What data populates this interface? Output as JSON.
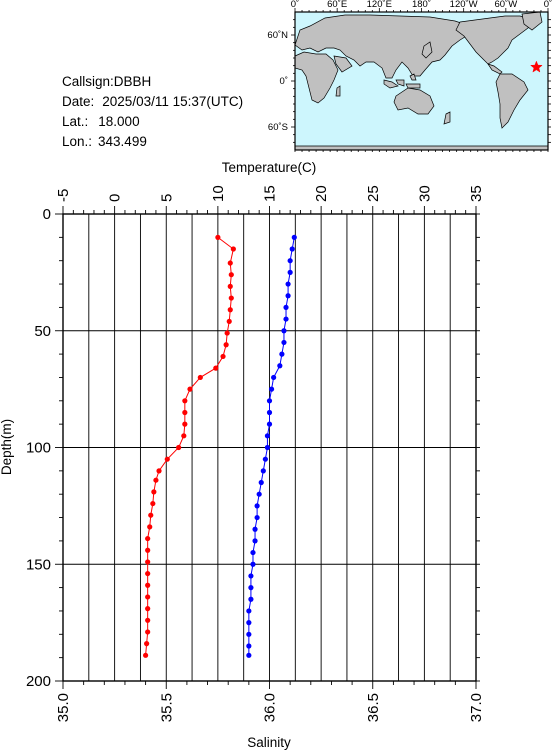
{
  "station": {
    "callsign_label": "Callsign:",
    "callsign": "DBBH",
    "date_label": "Date:",
    "date": "2025/03/11 15:37(UTC)",
    "lat_label": "Lat.:",
    "lat": "18.000",
    "lon_label": "Lon.:",
    "lon": "343.499"
  },
  "map": {
    "top_tick_labels": [
      "0˚",
      "60˚E",
      "120˚E",
      "180˚",
      "120˚W",
      "60˚W",
      "0˚"
    ],
    "side_tick_labels": [
      "60˚N",
      "0˚",
      "60˚S"
    ],
    "ocean_color": "#cdf6fd",
    "land_color": "#c0c0c0",
    "marker_color": "#ff0000",
    "marker_symbol": "star"
  },
  "chart_data": {
    "type": "line",
    "x_top": {
      "label": "Temperature(C)",
      "range": [
        -5,
        35
      ],
      "ticks": [
        "-5",
        "0",
        "5",
        "10",
        "15",
        "20",
        "25",
        "30",
        "35"
      ]
    },
    "x_bottom": {
      "label": "Salinity",
      "range": [
        35.0,
        37.0
      ],
      "ticks": [
        "35.0",
        "35.5",
        "36.0",
        "36.5",
        "37.0"
      ]
    },
    "y": {
      "label": "Depth(m)",
      "range": [
        0,
        200
      ],
      "inverted": true,
      "ticks": [
        "0",
        "50",
        "100",
        "150",
        "200"
      ]
    },
    "grid": true,
    "series": [
      {
        "axis": "temperature",
        "color": "#ff0000",
        "points": [
          [
            10.0,
            10
          ],
          [
            11.5,
            15
          ],
          [
            11.2,
            21
          ],
          [
            11.3,
            26
          ],
          [
            11.2,
            31
          ],
          [
            11.3,
            36
          ],
          [
            11.2,
            41
          ],
          [
            11.1,
            46
          ],
          [
            10.9,
            51
          ],
          [
            10.8,
            56
          ],
          [
            10.5,
            61
          ],
          [
            9.8,
            66
          ],
          [
            8.3,
            70
          ],
          [
            7.3,
            75
          ],
          [
            6.8,
            80
          ],
          [
            6.8,
            85
          ],
          [
            6.8,
            90
          ],
          [
            6.7,
            95
          ],
          [
            6.2,
            100
          ],
          [
            5.1,
            105
          ],
          [
            4.3,
            110
          ],
          [
            4.0,
            114
          ],
          [
            3.8,
            119
          ],
          [
            3.7,
            124
          ],
          [
            3.5,
            129
          ],
          [
            3.4,
            134
          ],
          [
            3.2,
            139
          ],
          [
            3.2,
            144
          ],
          [
            3.2,
            149
          ],
          [
            3.2,
            154
          ],
          [
            3.2,
            159
          ],
          [
            3.2,
            164
          ],
          [
            3.2,
            169
          ],
          [
            3.2,
            174
          ],
          [
            3.2,
            179
          ],
          [
            3.1,
            184
          ],
          [
            3.0,
            189
          ]
        ]
      },
      {
        "axis": "salinity",
        "color": "#0000ff",
        "points": [
          [
            36.12,
            10
          ],
          [
            36.11,
            15
          ],
          [
            36.1,
            20
          ],
          [
            36.1,
            25
          ],
          [
            36.09,
            30
          ],
          [
            36.09,
            35
          ],
          [
            36.08,
            40
          ],
          [
            36.08,
            45
          ],
          [
            36.07,
            50
          ],
          [
            36.07,
            55
          ],
          [
            36.06,
            60
          ],
          [
            36.05,
            65
          ],
          [
            36.02,
            70
          ],
          [
            36.01,
            75
          ],
          [
            36.0,
            80
          ],
          [
            36.0,
            85
          ],
          [
            36.0,
            90
          ],
          [
            35.99,
            95
          ],
          [
            35.99,
            100
          ],
          [
            35.98,
            105
          ],
          [
            35.97,
            110
          ],
          [
            35.96,
            115
          ],
          [
            35.95,
            120
          ],
          [
            35.94,
            125
          ],
          [
            35.94,
            130
          ],
          [
            35.93,
            135
          ],
          [
            35.93,
            140
          ],
          [
            35.92,
            145
          ],
          [
            35.92,
            150
          ],
          [
            35.91,
            155
          ],
          [
            35.91,
            160
          ],
          [
            35.91,
            165
          ],
          [
            35.9,
            170
          ],
          [
            35.9,
            175
          ],
          [
            35.9,
            180
          ],
          [
            35.9,
            185
          ],
          [
            35.9,
            189
          ]
        ]
      }
    ]
  }
}
